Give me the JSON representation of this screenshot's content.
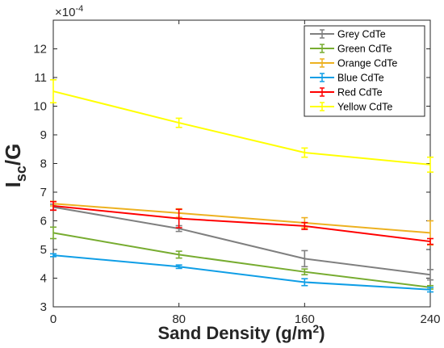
{
  "chart_data": {
    "type": "line",
    "xlabel": {
      "main": "Sand Density (g/m",
      "sup": "2",
      "close": ")"
    },
    "ylabel": {
      "main": "I",
      "sub": "sc",
      "rest": "/G"
    },
    "exponent": {
      "prefix": "×10",
      "power": "-4"
    },
    "x": [
      0,
      80,
      160,
      240
    ],
    "x_ticks": [
      0,
      80,
      160,
      240
    ],
    "y_ticks": [
      3,
      4,
      5,
      6,
      7,
      8,
      9,
      10,
      11,
      12
    ],
    "xlim": [
      0,
      240
    ],
    "ylim": [
      3,
      13
    ],
    "y_unit_scale": "1e-4",
    "grid": false,
    "legend_position": "top-right",
    "series": [
      {
        "name": "Grey CdTe",
        "color": "#7f7f7f",
        "values": [
          6.48,
          5.73,
          4.68,
          4.12
        ],
        "errors": [
          0.1,
          0.1,
          0.28,
          0.18
        ]
      },
      {
        "name": "Green CdTe",
        "color": "#77ac30",
        "values": [
          5.58,
          4.82,
          4.22,
          3.68
        ],
        "errors": [
          0.2,
          0.12,
          0.1,
          0.06
        ]
      },
      {
        "name": "Orange CdTe",
        "color": "#edb120",
        "values": [
          6.6,
          6.27,
          5.93,
          5.58
        ],
        "errors": [
          0.08,
          0.15,
          0.18,
          0.42
        ]
      },
      {
        "name": "Blue CdTe",
        "color": "#0f9ee6",
        "values": [
          4.8,
          4.4,
          3.86,
          3.6
        ],
        "errors": [
          0.05,
          0.06,
          0.12,
          0.08
        ]
      },
      {
        "name": "Red CdTe",
        "color": "#ff0000",
        "values": [
          6.52,
          6.08,
          5.82,
          5.28
        ],
        "errors": [
          0.15,
          0.32,
          0.12,
          0.1
        ]
      },
      {
        "name": "Yellow CdTe",
        "color": "#ffff00",
        "values": [
          10.52,
          9.42,
          8.38,
          7.96
        ],
        "errors": [
          0.4,
          0.16,
          0.16,
          0.26
        ]
      }
    ]
  }
}
